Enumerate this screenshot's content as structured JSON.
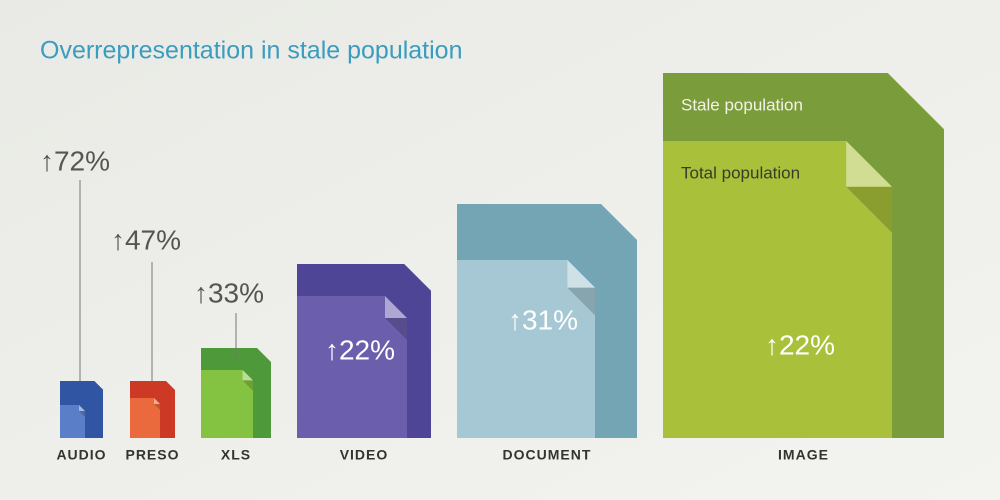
{
  "chart_data": {
    "type": "file-icons",
    "title": "Overrepresentation in stale population",
    "categories": [
      "AUDIO",
      "PRESO",
      "XLS",
      "VIDEO",
      "DOCUMENT",
      "IMAGE"
    ],
    "values": [
      72,
      47,
      33,
      22,
      31,
      22
    ],
    "value_labels": [
      "↑72%",
      "↑47%",
      "↑33%",
      "↑22%",
      "↑31%",
      "↑22%"
    ],
    "legend": [
      "Stale population",
      "Total population"
    ],
    "stale_colors": [
      "#2f55a3",
      "#cc3a26",
      "#4e9a3a",
      "#4f4596",
      "#74a5b4",
      "#7a9c3a"
    ],
    "total_colors": [
      "#5b7ec8",
      "#ea6a3e",
      "#84c341",
      "#6b5fad",
      "#a6c8d4",
      "#a9c13a"
    ]
  }
}
